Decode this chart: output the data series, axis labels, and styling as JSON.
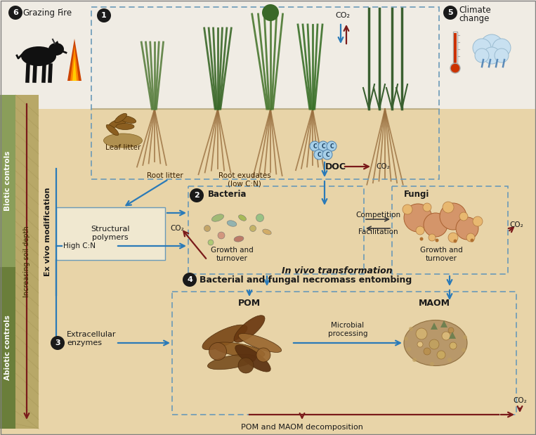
{
  "bg_color": "#e8d4a8",
  "left_green_dark": "#6a7e3a",
  "left_green_light": "#8a9e5a",
  "soil_tan": "#c8b878",
  "arrow_blue": "#2a7ab8",
  "arrow_red": "#7a1a1a",
  "box_border_blue": "#6a9ab8",
  "box_fill_light": "#f0e8d0",
  "box_fill_tan": "#e8d8b8",
  "text_dark": "#1a1a1a",
  "text_brown": "#3a2000",
  "biotic_label": "Biotic controls",
  "abiotic_label": "Abiotic controls",
  "soil_depth_label": "Increasing soil depth",
  "ex_vivo_label": "Ex vivo modification",
  "in_vivo_label": "In vivo transformation",
  "numbered_fc": "#1a1a1a"
}
